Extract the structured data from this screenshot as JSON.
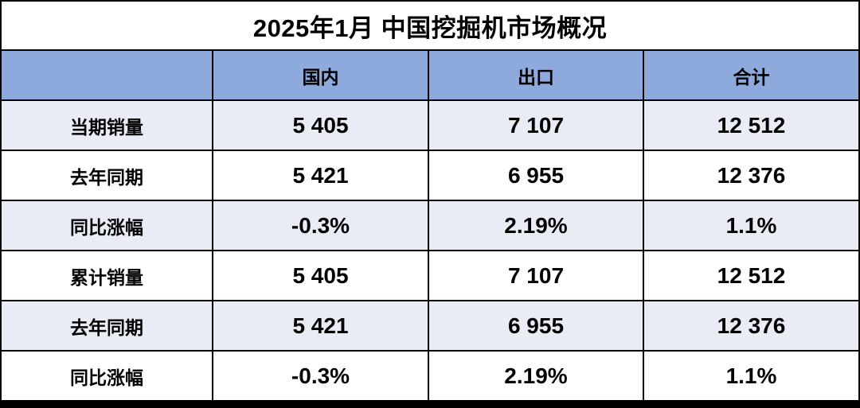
{
  "table": {
    "title": "2025年1月 中国挖掘机市场概况",
    "columns": [
      "",
      "国内",
      "出口",
      "合计"
    ],
    "rows": [
      {
        "label": "当期销量",
        "values": [
          "5 405",
          "7 107",
          "12 512"
        ]
      },
      {
        "label": "去年同期",
        "values": [
          "5 421",
          "6 955",
          "12 376"
        ]
      },
      {
        "label": "同比涨幅",
        "values": [
          "-0.3%",
          "2.19%",
          "1.1%"
        ]
      },
      {
        "label": "累计销量",
        "values": [
          "5 405",
          "7 107",
          "12 512"
        ]
      },
      {
        "label": "去年同期",
        "values": [
          "5 421",
          "6 955",
          "12 376"
        ]
      },
      {
        "label": "同比涨幅",
        "values": [
          "-0.3%",
          "2.19%",
          "1.1%"
        ]
      }
    ],
    "colors": {
      "header_bg": "#8EA9DB",
      "band_bg": "#E9EBF5",
      "plain_bg": "#FFFFFF",
      "grid": "#000000",
      "text": "#000000"
    }
  },
  "chart_data": {
    "type": "table",
    "title": "2025年1月 中国挖掘机市场概况",
    "columns": [
      "",
      "国内",
      "出口",
      "合计"
    ],
    "rows": [
      [
        "当期销量",
        "5 405",
        "7 107",
        "12 512"
      ],
      [
        "去年同期",
        "5 421",
        "6 955",
        "12 376"
      ],
      [
        "同比涨幅",
        "-0.3%",
        "2.19%",
        "1.1%"
      ],
      [
        "累计销量",
        "5 405",
        "7 107",
        "12 512"
      ],
      [
        "去年同期",
        "5 421",
        "6 955",
        "12 376"
      ],
      [
        "同比涨幅",
        "-0.3%",
        "2.19%",
        "1.1%"
      ]
    ]
  }
}
